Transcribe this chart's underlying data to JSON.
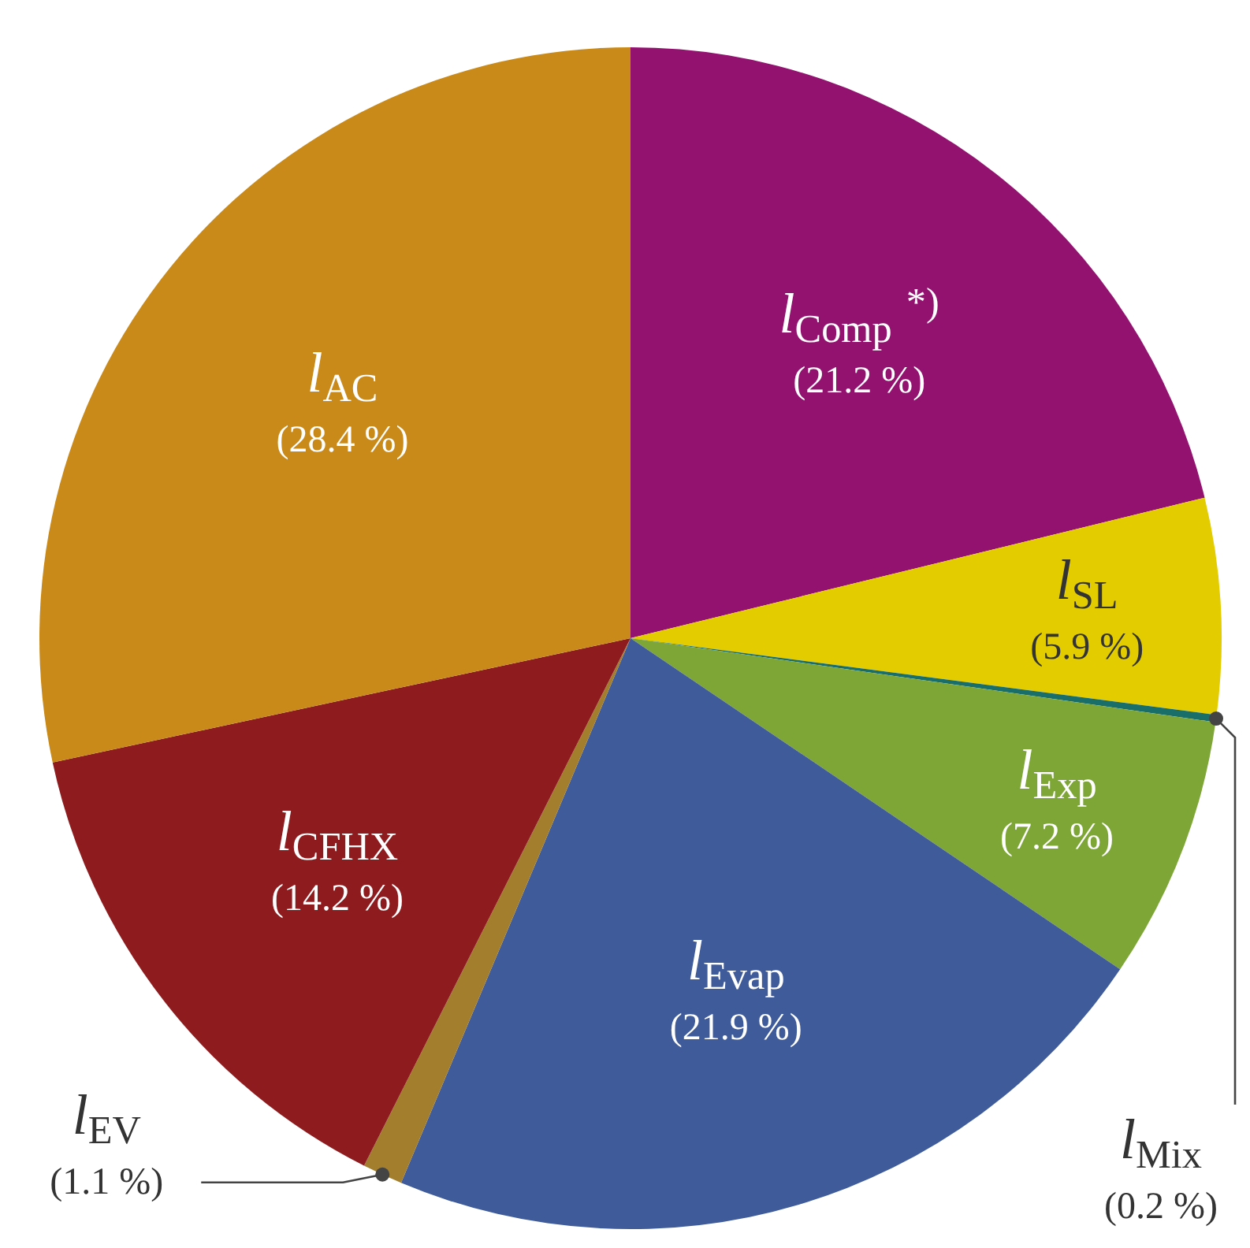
{
  "chart_data": {
    "type": "pie",
    "categories": [
      "l$_{Comp}$ $^{*)}$",
      "l$_{SL}$",
      "l$_{Mix}$",
      "l$_{Exp}$",
      "l$_{Evap}$",
      "l$_{EV}$",
      "l$_{CFHX}$",
      "l$_{AC}$"
    ],
    "values": [
      21.2,
      5.9,
      0.2,
      7.2,
      21.9,
      1.1,
      14.2,
      28.4
    ],
    "value_labels": [
      "(21.2 %)",
      "(5.9 %)",
      "(0.2 %)",
      "(7.2 %)",
      "(21.9 %)",
      "(1.1 %)",
      "(14.2 %)",
      "(28.4 %)"
    ],
    "colors": [
      "#931270",
      "#e3cd00",
      "#1a6e6a",
      "#7ea637",
      "#3f5b9a",
      "#a37e2c",
      "#8e1b1e",
      "#c98a1a"
    ]
  }
}
